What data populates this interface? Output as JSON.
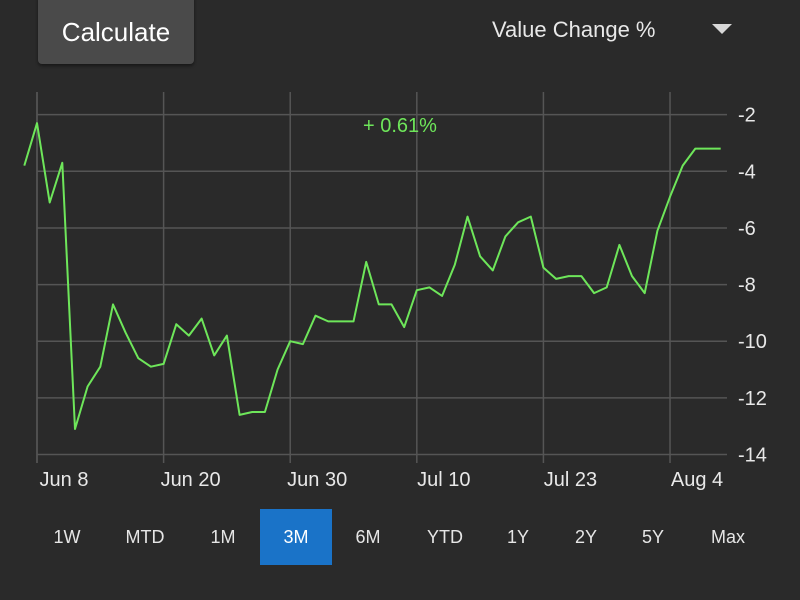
{
  "toolbar": {
    "calculate_label": "Calculate",
    "metric_selected": "Value Change %",
    "dropdown_icon": "caret-down-icon"
  },
  "chart_data": {
    "type": "line",
    "annotation": "+ 0.61%",
    "line_color": "#6ee65a",
    "grid_color": "#555555",
    "grid": true,
    "x_tick_labels": [
      "Jun 8",
      "Jun 20",
      "Jun 30",
      "Jul 10",
      "Jul 23",
      "Aug 4"
    ],
    "y_tick_labels": [
      "-2",
      "-4",
      "-6",
      "-8",
      "-10",
      "-12",
      "-14"
    ],
    "y_ticks": [
      -2,
      -4,
      -6,
      -8,
      -10,
      -12,
      -14
    ],
    "ylim": [
      -14.3,
      -1.2
    ],
    "xlim": [
      0,
      54.5
    ],
    "x_tick_positions": [
      0,
      10,
      20,
      30,
      40,
      50
    ],
    "series": [
      {
        "x": [
          -1,
          0,
          1,
          2,
          3,
          4,
          5,
          6,
          7,
          8,
          9,
          10,
          11,
          12,
          13,
          14,
          15,
          16,
          17,
          18,
          19,
          20,
          21,
          22,
          23,
          24,
          25,
          26,
          27,
          28,
          29,
          30,
          31,
          32,
          33,
          34,
          35,
          36,
          37,
          38,
          39,
          40,
          41,
          42,
          43,
          44,
          45,
          46,
          47,
          48,
          49,
          50,
          51,
          52,
          53,
          54
        ],
        "values": [
          -3.8,
          -2.3,
          -5.1,
          -3.7,
          -13.1,
          -11.6,
          -10.9,
          -8.7,
          -9.7,
          -10.6,
          -10.9,
          -10.8,
          -9.4,
          -9.8,
          -9.2,
          -10.5,
          -9.8,
          -12.6,
          -12.5,
          -12.5,
          -11.0,
          -10.0,
          -10.1,
          -9.1,
          -9.3,
          -9.3,
          -9.3,
          -7.2,
          -8.7,
          -8.7,
          -9.5,
          -8.2,
          -8.1,
          -8.4,
          -7.3,
          -5.6,
          -7.0,
          -7.5,
          -6.3,
          -5.8,
          -5.6,
          -7.4,
          -7.8,
          -7.7,
          -7.7,
          -8.3,
          -8.1,
          -6.6,
          -7.7,
          -8.3,
          -6.1,
          -4.9,
          -3.8,
          -3.2,
          -3.2,
          -3.2
        ]
      }
    ]
  },
  "ranges": {
    "selected": "3M",
    "items": [
      "1W",
      "MTD",
      "1M",
      "3M",
      "6M",
      "YTD",
      "1Y",
      "2Y",
      "5Y",
      "Max"
    ]
  }
}
